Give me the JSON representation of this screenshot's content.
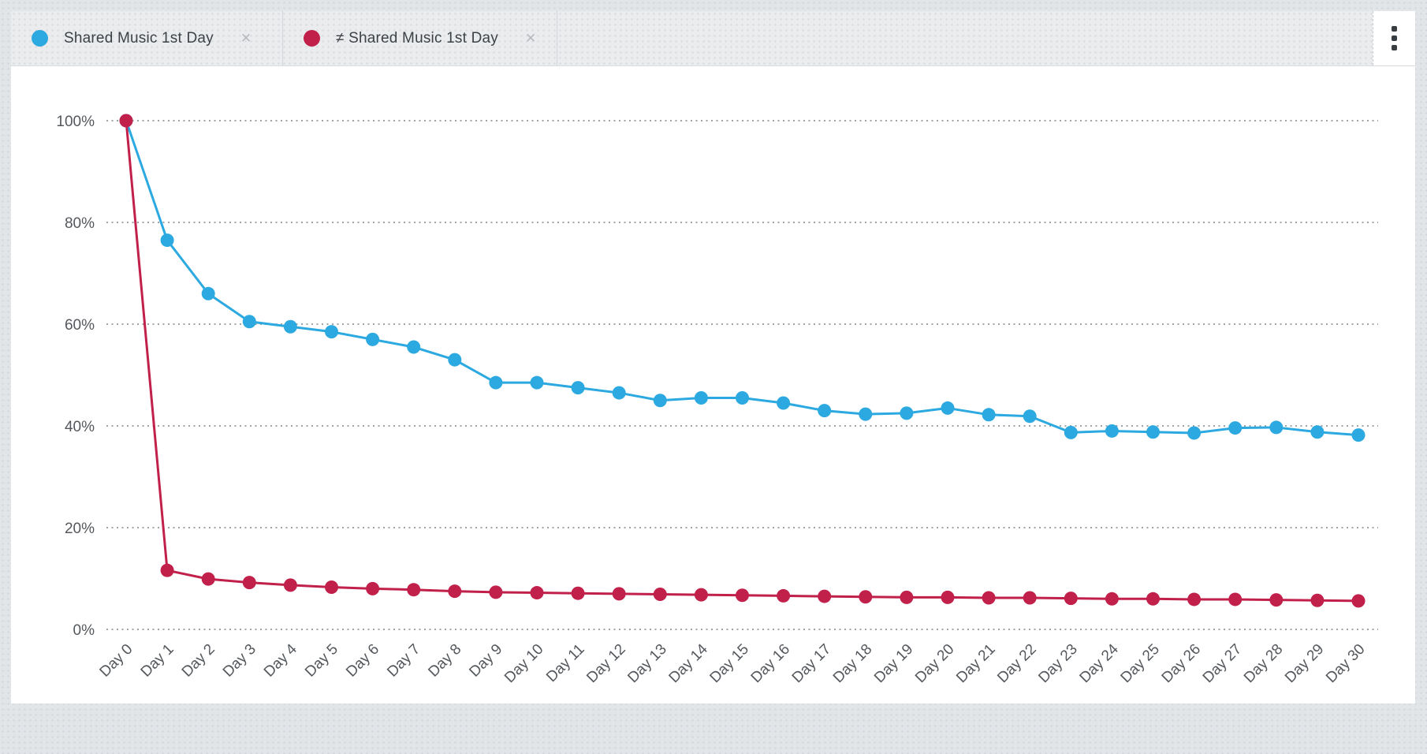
{
  "header": {
    "tabs": [
      {
        "label": "Shared Music 1st Day",
        "color": "#2BA9E0",
        "close_icon": "✕"
      },
      {
        "label": "≠ Shared Music 1st Day",
        "color": "#C1204B",
        "close_icon": "✕"
      }
    ],
    "menu_icon": "kebab-vertical-dots"
  },
  "chart_data": {
    "type": "line",
    "x": [
      "Day 0",
      "Day 1",
      "Day 2",
      "Day 3",
      "Day 4",
      "Day 5",
      "Day 6",
      "Day 7",
      "Day 8",
      "Day 9",
      "Day 10",
      "Day 11",
      "Day 12",
      "Day 13",
      "Day 14",
      "Day 15",
      "Day 16",
      "Day 17",
      "Day 18",
      "Day 19",
      "Day 20",
      "Day 21",
      "Day 22",
      "Day 23",
      "Day 24",
      "Day 25",
      "Day 26",
      "Day 27",
      "Day 28",
      "Day 29",
      "Day 30"
    ],
    "y_ticks": [
      "100%",
      "80%",
      "60%",
      "40%",
      "20%",
      "0%"
    ],
    "ylim": [
      0,
      100
    ],
    "grid": "horizontal-dotted",
    "legend_position": "top-tabs",
    "series": [
      {
        "name": "Shared Music 1st Day",
        "color": "#2BA9E0",
        "values": [
          100,
          76.5,
          66,
          60.5,
          59.5,
          58.5,
          57,
          55.5,
          53,
          48.5,
          48.5,
          47.5,
          46.5,
          45,
          45.5,
          45.5,
          44.5,
          43,
          42.3,
          42.5,
          43.5,
          42.2,
          41.9,
          38.7,
          39,
          38.8,
          38.6,
          39.6,
          39.7,
          38.8,
          38.2
        ]
      },
      {
        "name": "≠ Shared Music 1st Day",
        "color": "#C1204B",
        "values": [
          100,
          11.6,
          9.9,
          9.2,
          8.7,
          8.3,
          8,
          7.8,
          7.5,
          7.3,
          7.2,
          7.1,
          7,
          6.9,
          6.8,
          6.7,
          6.6,
          6.5,
          6.4,
          6.3,
          6.3,
          6.2,
          6.2,
          6.1,
          6,
          6,
          5.9,
          5.9,
          5.8,
          5.7,
          5.6
        ]
      }
    ]
  }
}
